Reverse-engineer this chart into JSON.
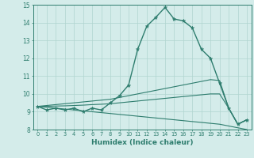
{
  "xlabel": "Humidex (Indice chaleur)",
  "x": [
    0,
    1,
    2,
    3,
    4,
    5,
    6,
    7,
    8,
    9,
    10,
    11,
    12,
    13,
    14,
    15,
    16,
    17,
    18,
    19,
    20,
    21,
    22,
    23
  ],
  "line_main": [
    9.3,
    9.1,
    9.2,
    9.1,
    9.2,
    9.0,
    9.2,
    9.1,
    9.5,
    9.9,
    10.5,
    12.5,
    13.8,
    14.3,
    14.85,
    14.2,
    14.1,
    13.7,
    12.5,
    12.0,
    10.6,
    9.2,
    8.3,
    8.55
  ],
  "line_upper": [
    9.3,
    9.35,
    9.4,
    9.45,
    9.5,
    9.55,
    9.6,
    9.65,
    9.7,
    9.8,
    9.9,
    10.0,
    10.1,
    10.2,
    10.3,
    10.4,
    10.5,
    10.6,
    10.7,
    10.8,
    10.75,
    9.2,
    8.3,
    8.55
  ],
  "line_lower": [
    9.3,
    9.25,
    9.2,
    9.15,
    9.1,
    9.05,
    9.0,
    8.95,
    8.9,
    8.85,
    8.8,
    8.75,
    8.7,
    8.65,
    8.6,
    8.55,
    8.5,
    8.45,
    8.4,
    8.35,
    8.3,
    8.2,
    8.1,
    8.0
  ],
  "line_mid": [
    9.3,
    9.3,
    9.32,
    9.33,
    9.35,
    9.37,
    9.4,
    9.42,
    9.45,
    9.5,
    9.55,
    9.6,
    9.65,
    9.7,
    9.75,
    9.8,
    9.85,
    9.9,
    9.95,
    10.0,
    10.0,
    9.2,
    8.3,
    8.55
  ],
  "color": "#2e7d6e",
  "bg_color": "#d4ecea",
  "grid_color": "#b0d4cf",
  "ylim": [
    8,
    15
  ],
  "yticks": [
    8,
    9,
    10,
    11,
    12,
    13,
    14,
    15
  ],
  "xticks": [
    0,
    1,
    2,
    3,
    4,
    5,
    6,
    7,
    8,
    9,
    10,
    11,
    12,
    13,
    14,
    15,
    16,
    17,
    18,
    19,
    20,
    21,
    22,
    23
  ]
}
